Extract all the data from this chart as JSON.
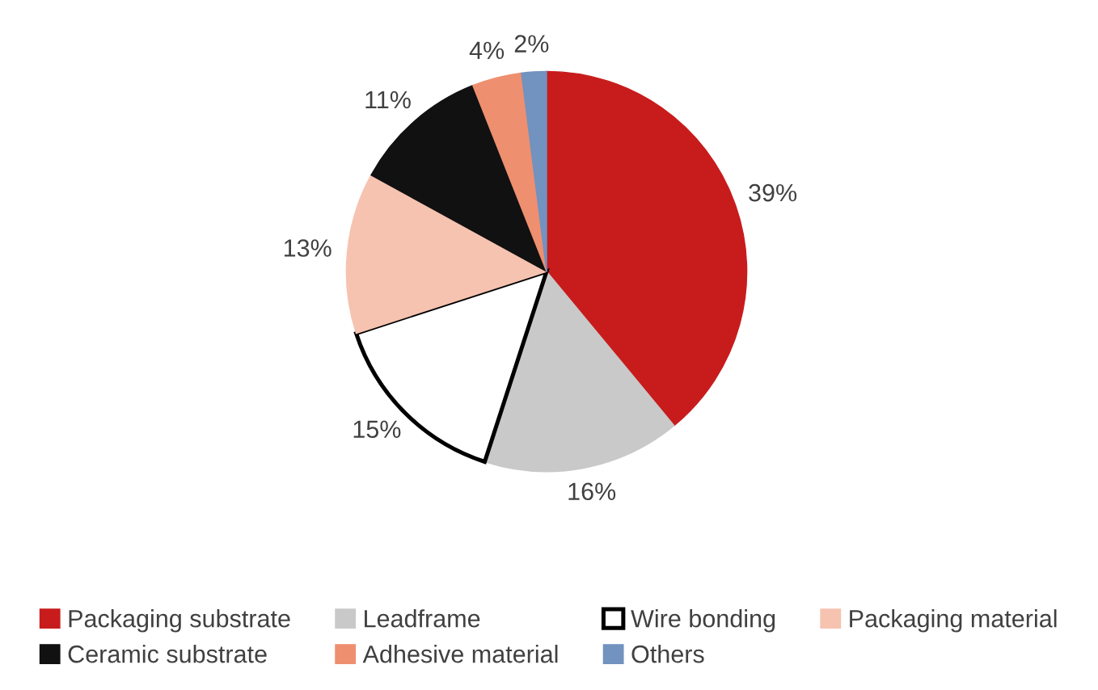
{
  "chart_data": {
    "type": "pie",
    "categories": [
      "Packaging substrate",
      "Leadframe",
      "Wire bonding",
      "Packaging material",
      "Ceramic substrate",
      "Adhesive material",
      "Others"
    ],
    "values": [
      39,
      16,
      15,
      13,
      11,
      4,
      2
    ],
    "value_labels": [
      "39%",
      "16%",
      "15%",
      "13%",
      "11%",
      "4%",
      "2%"
    ],
    "colors": [
      "#c81c1c",
      "#c9c9c9",
      "#ffffff",
      "#f6c3b1",
      "#111111",
      "#ee8f6f",
      "#7292c0"
    ],
    "legend": "bottom"
  }
}
